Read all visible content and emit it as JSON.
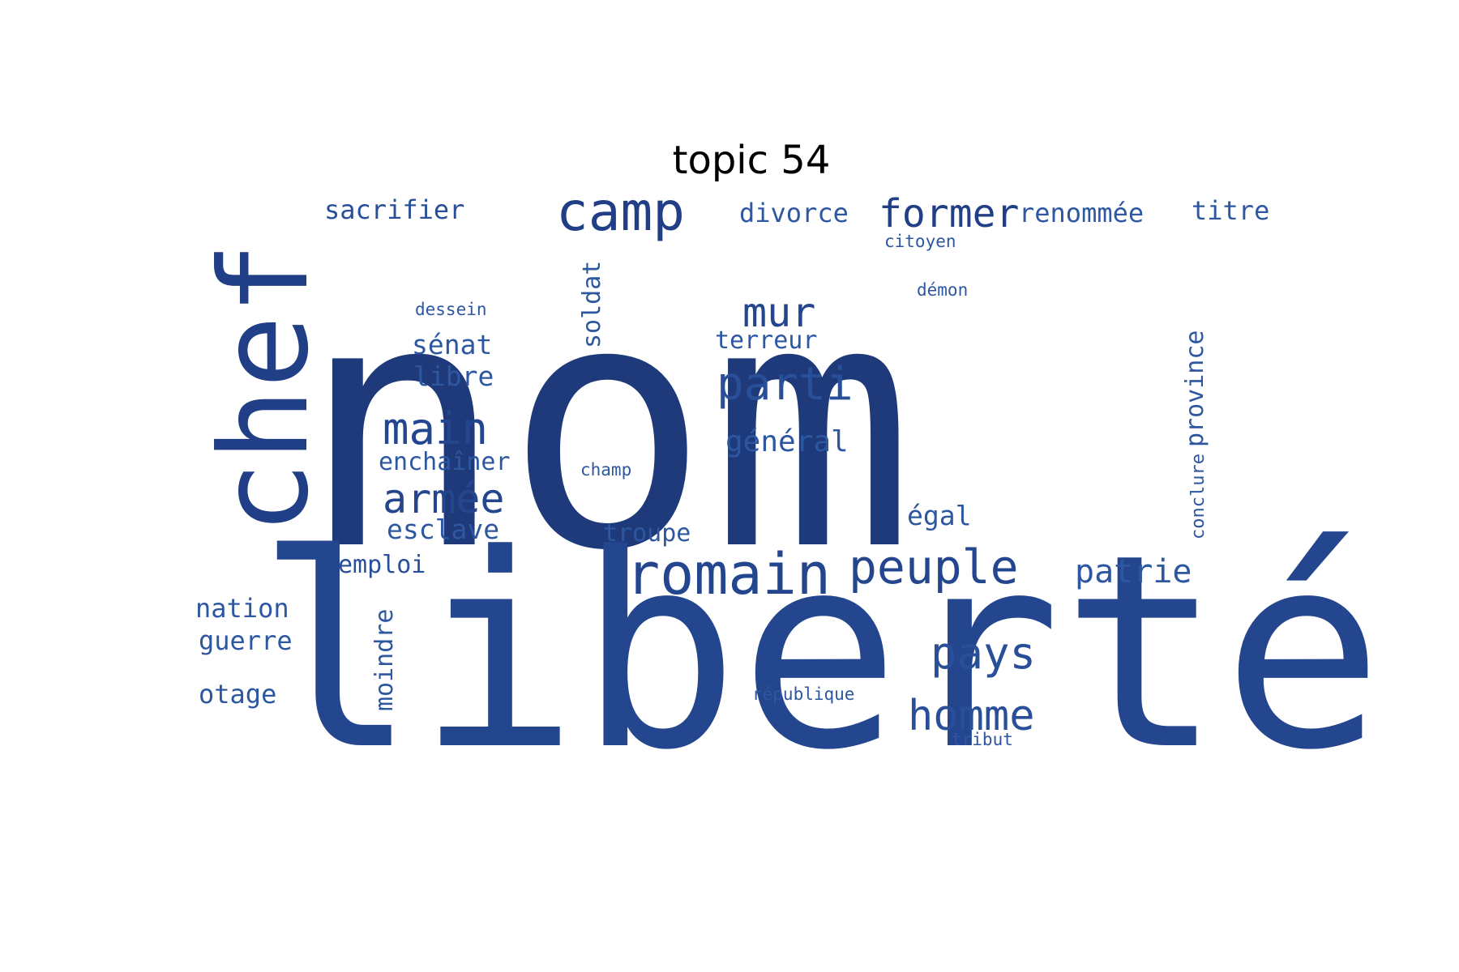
{
  "figure": {
    "title": "topic 54"
  },
  "colors": {
    "background": "#ffffff",
    "title": "#000000",
    "word_palette": [
      "#1e3a7b",
      "#213f86",
      "#24468f",
      "#284f98",
      "#2d57a0"
    ]
  },
  "wordcloud": {
    "words": [
      {
        "text": "nom",
        "rank": 1,
        "color": "#1e3a7b"
      },
      {
        "text": "liberté",
        "rank": 2,
        "color": "#24468f"
      },
      {
        "text": "chef",
        "rank": 3,
        "color": "#213f86"
      },
      {
        "text": "romain",
        "rank": 4,
        "color": "#24468f"
      },
      {
        "text": "camp",
        "rank": 5,
        "color": "#213f86"
      },
      {
        "text": "peuple",
        "rank": 6,
        "color": "#24468f"
      },
      {
        "text": "parti",
        "rank": 7,
        "color": "#284f98"
      },
      {
        "text": "pays",
        "rank": 8,
        "color": "#284f98"
      },
      {
        "text": "homme",
        "rank": 9,
        "color": "#284f98"
      },
      {
        "text": "main",
        "rank": 10,
        "color": "#24468f"
      },
      {
        "text": "armée",
        "rank": 11,
        "color": "#24468f"
      },
      {
        "text": "former",
        "rank": 12,
        "color": "#213f86"
      },
      {
        "text": "mur",
        "rank": 13,
        "color": "#24468f"
      },
      {
        "text": "patrie",
        "rank": 14,
        "color": "#2d57a0"
      },
      {
        "text": "général",
        "rank": 15,
        "color": "#2d57a0"
      },
      {
        "text": "sacrifier",
        "rank": 16,
        "color": "#284f98"
      },
      {
        "text": "divorce",
        "rank": 17,
        "color": "#2d57a0"
      },
      {
        "text": "renommée",
        "rank": 18,
        "color": "#2d57a0"
      },
      {
        "text": "titre",
        "rank": 19,
        "color": "#2d57a0"
      },
      {
        "text": "sénat",
        "rank": 20,
        "color": "#2d57a0"
      },
      {
        "text": "libre",
        "rank": 21,
        "color": "#2d57a0"
      },
      {
        "text": "enchaîner",
        "rank": 22,
        "color": "#2d57a0"
      },
      {
        "text": "esclave",
        "rank": 23,
        "color": "#2d57a0"
      },
      {
        "text": "emploi",
        "rank": 24,
        "color": "#284f98"
      },
      {
        "text": "nation",
        "rank": 25,
        "color": "#2d57a0"
      },
      {
        "text": "guerre",
        "rank": 26,
        "color": "#2d57a0"
      },
      {
        "text": "otage",
        "rank": 27,
        "color": "#2d57a0"
      },
      {
        "text": "troupe",
        "rank": 28,
        "color": "#2d57a0"
      },
      {
        "text": "égal",
        "rank": 29,
        "color": "#2d57a0"
      },
      {
        "text": "terreur",
        "rank": 30,
        "color": "#2d57a0"
      },
      {
        "text": "soldat",
        "rank": 31,
        "color": "#2d57a0"
      },
      {
        "text": "moindre",
        "rank": 32,
        "color": "#2d57a0"
      },
      {
        "text": "province",
        "rank": 33,
        "color": "#2d57a0"
      },
      {
        "text": "conclure",
        "rank": 34,
        "color": "#2d57a0"
      },
      {
        "text": "citoyen",
        "rank": 35,
        "color": "#2d57a0"
      },
      {
        "text": "démon",
        "rank": 36,
        "color": "#2d57a0"
      },
      {
        "text": "dessein",
        "rank": 37,
        "color": "#2d57a0"
      },
      {
        "text": "champ",
        "rank": 38,
        "color": "#2d57a0"
      },
      {
        "text": "république",
        "rank": 39,
        "color": "#2d57a0"
      },
      {
        "text": "tribut",
        "rank": 40,
        "color": "#2d57a0"
      }
    ]
  }
}
